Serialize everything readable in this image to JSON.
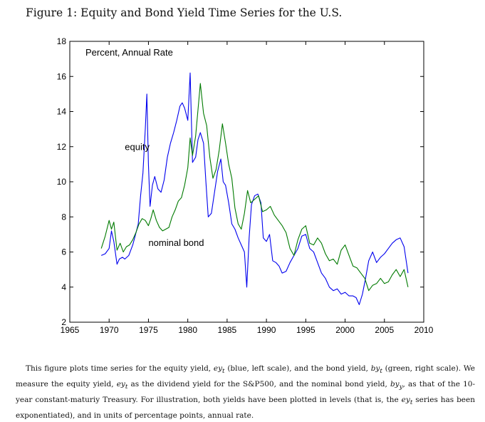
{
  "figure": {
    "title": "Figure 1: Equity and Bond Yield Time Series for the U.S."
  },
  "chart_data": {
    "type": "line",
    "annotation_units": "Percent, Annual Rate",
    "xlim": [
      1965,
      2010
    ],
    "ylim": [
      2,
      18
    ],
    "xticks": [
      1965,
      1970,
      1975,
      1980,
      1985,
      1990,
      1995,
      2000,
      2005,
      2010
    ],
    "yticks": [
      2,
      4,
      6,
      8,
      10,
      12,
      14,
      16,
      18
    ],
    "grid": false,
    "series": [
      {
        "name": "equity",
        "color": "#0000ee",
        "x": [
          1969.0,
          1969.5,
          1970.0,
          1970.3,
          1970.6,
          1971.0,
          1971.3,
          1971.7,
          1972.0,
          1972.5,
          1973.0,
          1973.3,
          1973.7,
          1974.0,
          1974.3,
          1974.6,
          1974.8,
          1975.0,
          1975.2,
          1975.5,
          1975.8,
          1976.2,
          1976.6,
          1977.0,
          1977.4,
          1977.8,
          1978.2,
          1978.6,
          1979.0,
          1979.3,
          1979.6,
          1980.0,
          1980.3,
          1980.6,
          1981.0,
          1981.3,
          1981.6,
          1982.0,
          1982.3,
          1982.6,
          1983.0,
          1983.4,
          1983.8,
          1984.2,
          1984.5,
          1984.8,
          1985.2,
          1985.6,
          1986.0,
          1986.4,
          1986.8,
          1987.2,
          1987.5,
          1987.8,
          1988.1,
          1988.5,
          1988.9,
          1989.3,
          1989.6,
          1990.0,
          1990.4,
          1990.8,
          1991.2,
          1991.6,
          1992.0,
          1992.5,
          1993.0,
          1993.5,
          1994.0,
          1994.5,
          1995.0,
          1995.5,
          1996.0,
          1996.5,
          1997.0,
          1997.5,
          1998.0,
          1998.5,
          1999.0,
          1999.5,
          2000.0,
          2000.5,
          2001.0,
          2001.4,
          2001.8,
          2002.2,
          2002.6,
          2003.0,
          2003.5,
          2004.0,
          2004.5,
          2005.0,
          2005.5,
          2006.0,
          2006.5,
          2007.0,
          2007.5,
          2008.0
        ],
        "y": [
          5.8,
          5.9,
          6.2,
          7.2,
          6.6,
          5.3,
          5.6,
          5.7,
          5.6,
          5.8,
          6.4,
          6.9,
          7.6,
          9.2,
          10.5,
          13.0,
          15.0,
          11.0,
          8.6,
          9.8,
          10.3,
          9.6,
          9.4,
          10.1,
          11.4,
          12.2,
          12.8,
          13.5,
          14.3,
          14.5,
          14.2,
          13.5,
          16.2,
          11.1,
          11.4,
          12.4,
          12.8,
          12.2,
          10.0,
          8.0,
          8.2,
          9.4,
          10.6,
          11.3,
          10.0,
          9.8,
          8.8,
          7.6,
          7.3,
          6.8,
          6.4,
          6.0,
          4.0,
          6.8,
          8.7,
          9.2,
          9.3,
          8.8,
          6.8,
          6.6,
          7.0,
          5.5,
          5.4,
          5.2,
          4.8,
          4.9,
          5.4,
          5.8,
          6.2,
          6.9,
          7.0,
          6.2,
          6.0,
          5.4,
          4.8,
          4.5,
          4.0,
          3.8,
          3.9,
          3.6,
          3.7,
          3.5,
          3.5,
          3.4,
          3.0,
          3.6,
          4.5,
          5.5,
          6.0,
          5.4,
          5.7,
          5.9,
          6.2,
          6.5,
          6.7,
          6.8,
          6.3,
          4.8
        ]
      },
      {
        "name": "nominal bond",
        "color": "#007a00",
        "x": [
          1969.0,
          1969.5,
          1970.0,
          1970.3,
          1970.6,
          1971.0,
          1971.4,
          1971.8,
          1972.2,
          1972.6,
          1973.0,
          1973.4,
          1973.8,
          1974.2,
          1974.6,
          1975.0,
          1975.3,
          1975.6,
          1976.0,
          1976.4,
          1976.8,
          1977.2,
          1977.6,
          1978.0,
          1978.4,
          1978.8,
          1979.2,
          1979.6,
          1980.0,
          1980.3,
          1980.6,
          1981.0,
          1981.3,
          1981.6,
          1982.0,
          1982.4,
          1982.8,
          1983.2,
          1983.6,
          1984.0,
          1984.4,
          1984.8,
          1985.2,
          1985.6,
          1986.0,
          1986.4,
          1986.8,
          1987.2,
          1987.6,
          1988.0,
          1988.5,
          1989.0,
          1989.5,
          1990.0,
          1990.5,
          1991.0,
          1991.5,
          1992.0,
          1992.5,
          1993.0,
          1993.5,
          1994.0,
          1994.5,
          1995.0,
          1995.5,
          1996.0,
          1996.5,
          1997.0,
          1997.5,
          1998.0,
          1998.5,
          1999.0,
          1999.5,
          2000.0,
          2000.5,
          2001.0,
          2001.5,
          2002.0,
          2002.5,
          2003.0,
          2003.5,
          2004.0,
          2004.5,
          2005.0,
          2005.5,
          2006.0,
          2006.5,
          2007.0,
          2007.5,
          2008.0
        ],
        "y": [
          6.2,
          6.9,
          7.8,
          7.3,
          7.7,
          6.1,
          6.5,
          6.0,
          6.3,
          6.4,
          6.7,
          7.1,
          7.6,
          7.9,
          7.8,
          7.5,
          7.9,
          8.4,
          7.8,
          7.4,
          7.2,
          7.3,
          7.4,
          8.0,
          8.4,
          8.9,
          9.1,
          9.8,
          10.8,
          12.5,
          11.5,
          12.6,
          14.1,
          15.6,
          13.9,
          13.2,
          11.4,
          10.2,
          10.7,
          11.8,
          13.3,
          12.2,
          11.0,
          10.2,
          8.5,
          7.6,
          7.3,
          8.2,
          9.5,
          8.8,
          9.0,
          9.2,
          8.3,
          8.4,
          8.6,
          8.1,
          7.8,
          7.5,
          7.1,
          6.2,
          5.8,
          6.7,
          7.3,
          7.5,
          6.5,
          6.4,
          6.8,
          6.5,
          5.9,
          5.5,
          5.6,
          5.3,
          6.1,
          6.4,
          5.8,
          5.2,
          5.1,
          4.8,
          4.5,
          3.8,
          4.1,
          4.2,
          4.5,
          4.2,
          4.3,
          4.7,
          5.0,
          4.6,
          5.0,
          4.0
        ]
      }
    ],
    "annotations": [
      {
        "text": "equity",
        "x": 1972.0,
        "y": 11.8
      },
      {
        "text": "nominal bond",
        "x": 1975.0,
        "y": 6.35
      }
    ]
  },
  "caption": {
    "parts": [
      "This figure plots time series for the equity yield, ",
      "ey",
      " (blue, left scale), and the bond yield, ",
      "by",
      " (green, right scale). We measure the equity yield, ",
      "ey",
      " as the dividend yield for the S&P500, and the nominal bond yield, ",
      "by",
      ", as that of the 10-year constant-maturiy Treasury.  For illustration, both yields have been plotted in levels (that is, the ",
      "ey",
      " series has been exponentiated), and in units of percentage points, annual rate."
    ],
    "subscripts": [
      "t",
      "t",
      "t",
      "y",
      "t"
    ]
  }
}
